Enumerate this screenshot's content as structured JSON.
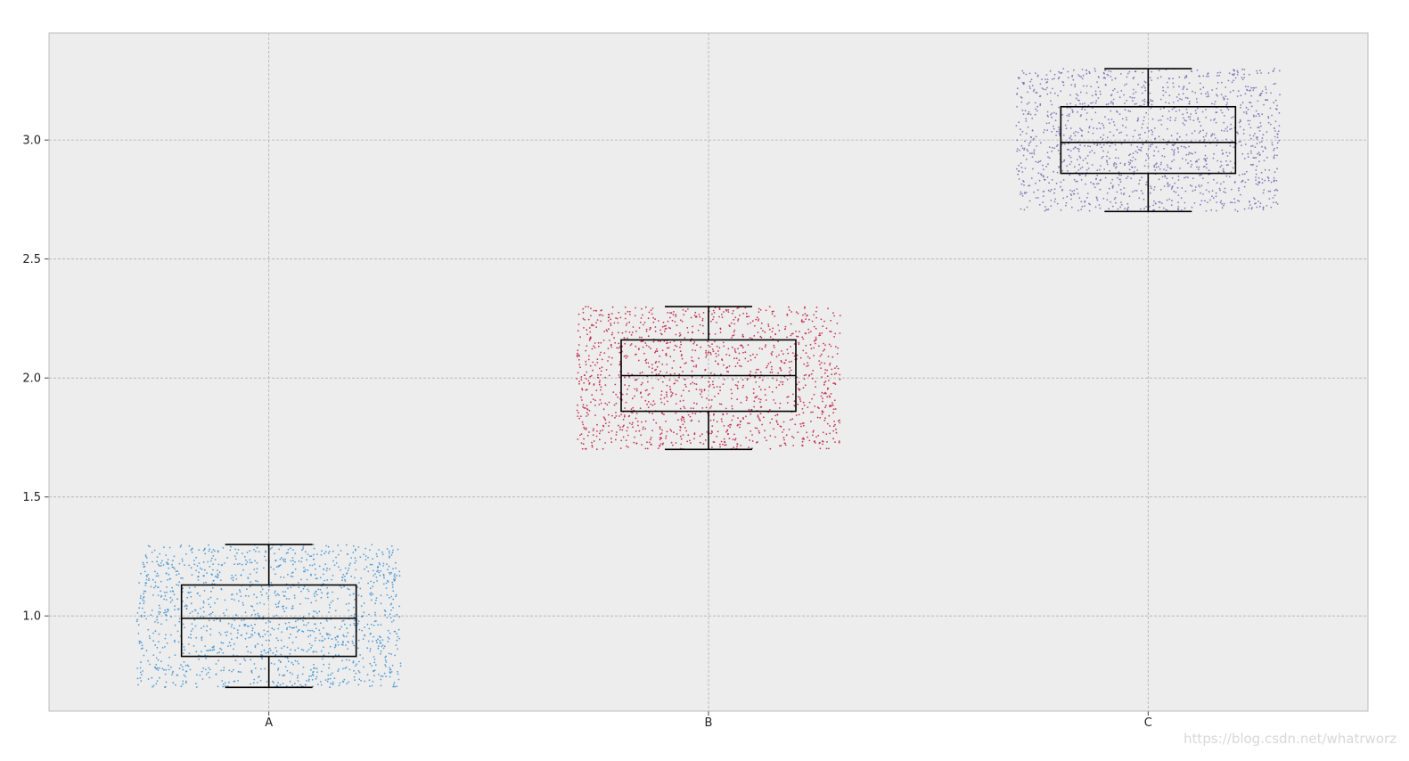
{
  "chart_data": {
    "type": "boxplot",
    "style": "boxplot with jittered raw points, grid on, light gray plot background",
    "categories": [
      "A",
      "B",
      "C"
    ],
    "ylim": [
      0.6,
      3.45
    ],
    "yticks": [
      1.0,
      1.5,
      2.0,
      2.5,
      3.0
    ],
    "ytick_labels": [
      "1.0",
      "1.5",
      "2.0",
      "2.5",
      "3.0"
    ],
    "grid": true,
    "colors": {
      "background": "#ededed",
      "grid": "#b0b0b0",
      "box": "#000000",
      "points": [
        "#3b8fd0",
        "#c0183e",
        "#7669b0"
      ]
    },
    "series": [
      {
        "category": "A",
        "whisker_low": 0.7,
        "q1": 0.83,
        "median": 0.99,
        "q3": 1.13,
        "whisker_high": 1.3,
        "points_range": [
          0.7,
          1.3
        ],
        "point_color": "#3b8fd0"
      },
      {
        "category": "B",
        "whisker_low": 1.7,
        "q1": 1.86,
        "median": 2.01,
        "q3": 2.16,
        "whisker_high": 2.3,
        "points_range": [
          1.7,
          2.3
        ],
        "point_color": "#c0183e"
      },
      {
        "category": "C",
        "whisker_low": 2.7,
        "q1": 2.86,
        "median": 2.99,
        "q3": 3.14,
        "whisker_high": 3.3,
        "points_range": [
          2.7,
          3.3
        ],
        "point_color": "#7669b0"
      }
    ]
  },
  "watermark": "https://blog.csdn.net/whatrworz"
}
